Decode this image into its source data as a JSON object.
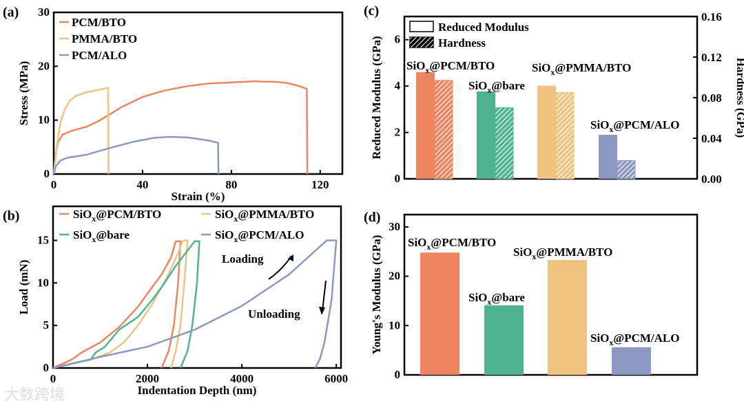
{
  "colors": {
    "pcm_bto": "#ec8560",
    "pmma_bto": "#f0c383",
    "bare": "#4fb392",
    "pcm_alo": "#8d98c0"
  },
  "watermark": "大数跨境",
  "chart_data": [
    {
      "panel": "(a)",
      "type": "line",
      "xlabel": "Strain (%)",
      "ylabel": "Stress (MPa)",
      "xlim": [
        0,
        130
      ],
      "ylim": [
        0,
        30
      ],
      "xticks": [
        0,
        40,
        80,
        120
      ],
      "yticks": [
        0,
        10,
        20,
        30
      ],
      "legend_position": "top-left",
      "series": [
        {
          "name": "PCM/BTO",
          "color_key": "pcm_bto",
          "points": [
            [
              0,
              0
            ],
            [
              1,
              4
            ],
            [
              2,
              6
            ],
            [
              4,
              7.3
            ],
            [
              8,
              8
            ],
            [
              15,
              8.8
            ],
            [
              20,
              9.8
            ],
            [
              25,
              11
            ],
            [
              30,
              12.3
            ],
            [
              40,
              14.3
            ],
            [
              50,
              15.5
            ],
            [
              60,
              16.3
            ],
            [
              70,
              16.8
            ],
            [
              80,
              17
            ],
            [
              90,
              17.2
            ],
            [
              100,
              17.1
            ],
            [
              105,
              16.9
            ],
            [
              110,
              16.4
            ],
            [
              114,
              15.8
            ],
            [
              114.2,
              0
            ]
          ]
        },
        {
          "name": "PMMA/BTO",
          "color_key": "pmma_bto",
          "points": [
            [
              0,
              0
            ],
            [
              1,
              4
            ],
            [
              2,
              7
            ],
            [
              3,
              9.5
            ],
            [
              5,
              12
            ],
            [
              7,
              13.5
            ],
            [
              10,
              14.5
            ],
            [
              15,
              15.2
            ],
            [
              20,
              15.6
            ],
            [
              24.5,
              16
            ],
            [
              24.7,
              0
            ]
          ]
        },
        {
          "name": "PCM/ALO",
          "color_key": "pcm_alo",
          "points": [
            [
              0,
              0
            ],
            [
              1,
              1.5
            ],
            [
              3,
              2.5
            ],
            [
              6,
              3
            ],
            [
              15,
              3.6
            ],
            [
              20,
              4.2
            ],
            [
              25,
              4.8
            ],
            [
              35,
              5.9
            ],
            [
              45,
              6.7
            ],
            [
              52,
              6.9
            ],
            [
              60,
              6.8
            ],
            [
              67,
              6.4
            ],
            [
              70,
              6.2
            ],
            [
              74,
              5.8
            ],
            [
              74.2,
              0
            ]
          ]
        }
      ]
    },
    {
      "panel": "(b)",
      "type": "line",
      "xlabel": "Indentation Depth (nm)",
      "ylabel": "Load (mN)",
      "xlim": [
        0,
        6100
      ],
      "ylim": [
        0,
        19
      ],
      "xticks": [
        0,
        2000,
        4000,
        6000
      ],
      "yticks": [
        0,
        5,
        10,
        15
      ],
      "legend_position": "top",
      "annotations": [
        "Loading",
        "Unloading"
      ],
      "series": [
        {
          "name": "SiOx@PCM/BTO",
          "color_key": "pcm_bto",
          "points": [
            [
              0,
              0
            ],
            [
              400,
              1
            ],
            [
              600,
              1.8
            ],
            [
              1000,
              3
            ],
            [
              1400,
              4.8
            ],
            [
              1800,
              7.2
            ],
            [
              2100,
              9.5
            ],
            [
              2300,
              11
            ],
            [
              2500,
              13
            ],
            [
              2600,
              14.9
            ],
            [
              2700,
              14.9
            ],
            [
              2650,
              10
            ],
            [
              2560,
              5
            ],
            [
              2450,
              2
            ],
            [
              2300,
              0
            ]
          ]
        },
        {
          "name": "SiOx@PMMA/BTO",
          "color_key": "pmma_bto",
          "points": [
            [
              0,
              0
            ],
            [
              800,
              1
            ],
            [
              1200,
              1.8
            ],
            [
              1500,
              3
            ],
            [
              1800,
              5
            ],
            [
              2100,
              7.5
            ],
            [
              2400,
              10.5
            ],
            [
              2650,
              13.5
            ],
            [
              2750,
              15
            ],
            [
              2850,
              15
            ],
            [
              2780,
              10
            ],
            [
              2700,
              5
            ],
            [
              2600,
              2
            ],
            [
              2500,
              0
            ]
          ]
        },
        {
          "name": "SiOx@bare",
          "color_key": "bare",
          "points": [
            [
              0,
              0
            ],
            [
              800,
              1
            ],
            [
              900,
              1.8
            ],
            [
              1100,
              2.5
            ],
            [
              1400,
              4.5
            ],
            [
              1800,
              6
            ],
            [
              2100,
              8
            ],
            [
              2300,
              9.5
            ],
            [
              2600,
              12
            ],
            [
              3000,
              14.9
            ],
            [
              3100,
              14.9
            ],
            [
              3050,
              10
            ],
            [
              2950,
              5
            ],
            [
              2850,
              2
            ],
            [
              2700,
              0
            ]
          ]
        },
        {
          "name": "SiOx@PCM/ALO",
          "color_key": "pcm_alo",
          "points": [
            [
              0,
              0
            ],
            [
              1000,
              1.3
            ],
            [
              2000,
              2.5
            ],
            [
              3000,
              4.5
            ],
            [
              4000,
              7.3
            ],
            [
              5000,
              11
            ],
            [
              5800,
              15
            ],
            [
              6000,
              15
            ],
            [
              5900,
              8
            ],
            [
              5750,
              3
            ],
            [
              5650,
              1
            ],
            [
              5550,
              0
            ]
          ]
        }
      ]
    },
    {
      "panel": "(c)",
      "type": "bar",
      "ylabel": "Reduced Modulus (GPa)",
      "y2label": "Hardness (GPa)",
      "ylim": [
        0,
        7
      ],
      "y2lim": [
        0,
        0.16
      ],
      "yticks": [
        0,
        2,
        4,
        6
      ],
      "y2ticks": [
        "0.00",
        "0.04",
        "0.08",
        "0.12",
        "0.16"
      ],
      "legend": [
        "Reduced Modulus",
        "Hardness"
      ],
      "legend_position": "top-left",
      "categories": [
        "SiOx@PCM/BTO",
        "SiOx@bare",
        "SiOx@PMMA/BTO",
        "SiOx@PCM/ALO"
      ],
      "color_keys": [
        "pcm_bto",
        "bare",
        "pmma_bto",
        "pcm_alo"
      ],
      "series": [
        {
          "name": "Reduced Modulus",
          "values": [
            4.6,
            3.77,
            4.02,
            1.9
          ]
        },
        {
          "name": "Hardness",
          "values": [
            0.097,
            0.07,
            0.085,
            0.018
          ]
        }
      ]
    },
    {
      "panel": "(d)",
      "type": "bar",
      "ylabel": "Young's Modulus (GPa)",
      "ylim": [
        0,
        32.5
      ],
      "yticks": [
        0,
        10,
        20,
        30
      ],
      "categories": [
        "SiOx@PCM/BTO",
        "SiOx@bare",
        "SiOx@PMMA/BTO",
        "SiOx@PCM/ALO"
      ],
      "color_keys": [
        "pcm_bto",
        "bare",
        "pmma_bto",
        "pcm_alo"
      ],
      "values": [
        24.8,
        14.1,
        23.3,
        5.6
      ]
    }
  ]
}
